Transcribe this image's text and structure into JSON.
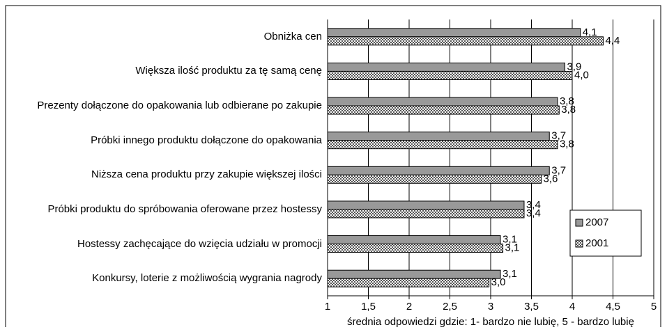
{
  "chart_data": {
    "type": "hbar",
    "categories": [
      "Obniżka cen",
      "Większa ilość produktu za tę samą cenę",
      "Prezenty dołączone do opakowania lub odbierane po zakupie",
      "Próbki innego produktu dołączone do opakowania",
      "Niższa cena produktu przy zakupie większej ilości",
      "Próbki produktu do spróbowania oferowane przez hostessy",
      "Hostessy zachęcające do wzięcia udziału w promocji",
      "Konkursy, loterie z możliwością wygrania nagrody"
    ],
    "series": [
      {
        "name": "2007",
        "color": "#999999",
        "pattern": "solid",
        "values": [
          4.1,
          3.91,
          3.82,
          3.72,
          3.72,
          3.41,
          3.12,
          3.12
        ],
        "value_labels": [
          "4,1",
          "3,9",
          "3,8",
          "3,7",
          "3,7",
          "3,4",
          "3,1",
          "3,1"
        ]
      },
      {
        "name": "2001",
        "color": "#555555",
        "pattern": "checker",
        "values": [
          4.38,
          4.0,
          3.84,
          3.82,
          3.62,
          3.41,
          3.15,
          2.98
        ],
        "value_labels": [
          "4,4",
          "4,0",
          "3,8",
          "3,8",
          "3,6",
          "3,4",
          "3,1",
          "3,0"
        ]
      }
    ],
    "xlabel": "średnia odpowiedzi gdzie: 1- bardzo nie lubię,  5 - bardzo lubię",
    "xlim": [
      1,
      5
    ],
    "xticks": [
      1,
      {
        "value": 1.5,
        "label": "1,5"
      },
      2,
      {
        "value": 2.5,
        "label": "2,5"
      },
      3,
      {
        "value": 3.5,
        "label": "3,5"
      },
      4,
      {
        "value": 4.5,
        "label": "4,5"
      },
      5
    ],
    "grid": true,
    "legend": "right"
  }
}
